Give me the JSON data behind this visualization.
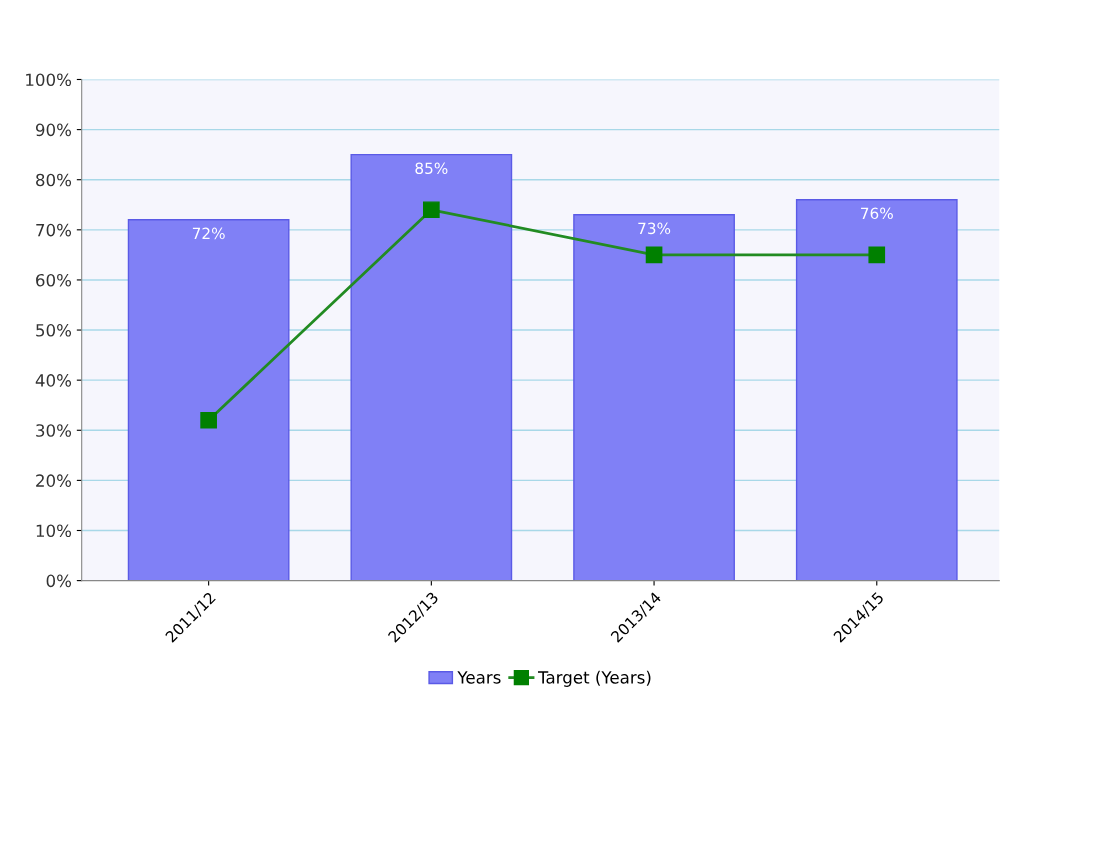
{
  "chart_data": {
    "type": "bar",
    "categories": [
      "2011/12",
      "2012/13",
      "2013/14",
      "2014/15"
    ],
    "series": [
      {
        "name": "Years",
        "color": "#8080f6",
        "values": [
          72,
          85,
          73,
          76
        ],
        "value_labels": [
          "72%",
          "85%",
          "73%",
          "76%"
        ]
      },
      {
        "name": "Target (Years)",
        "type": "line",
        "color": "#228b22",
        "values": [
          32,
          74,
          65,
          65
        ],
        "marker": "square",
        "line_style": "solid"
      }
    ],
    "ylim": [
      0,
      100
    ],
    "yticks": [
      {
        "value": 0,
        "label": "0%"
      },
      {
        "value": 10,
        "label": "10%"
      },
      {
        "value": 20,
        "label": "20%"
      },
      {
        "value": 30,
        "label": "30%"
      },
      {
        "value": 40,
        "label": "40%"
      },
      {
        "value": 50,
        "label": "50%"
      },
      {
        "value": 60,
        "label": "60%"
      },
      {
        "value": 70,
        "label": "70%"
      },
      {
        "value": 80,
        "label": "80%"
      },
      {
        "value": 90,
        "label": "90%"
      },
      {
        "value": 100,
        "label": "100%"
      }
    ],
    "grid": "y",
    "legend": "bottom"
  }
}
